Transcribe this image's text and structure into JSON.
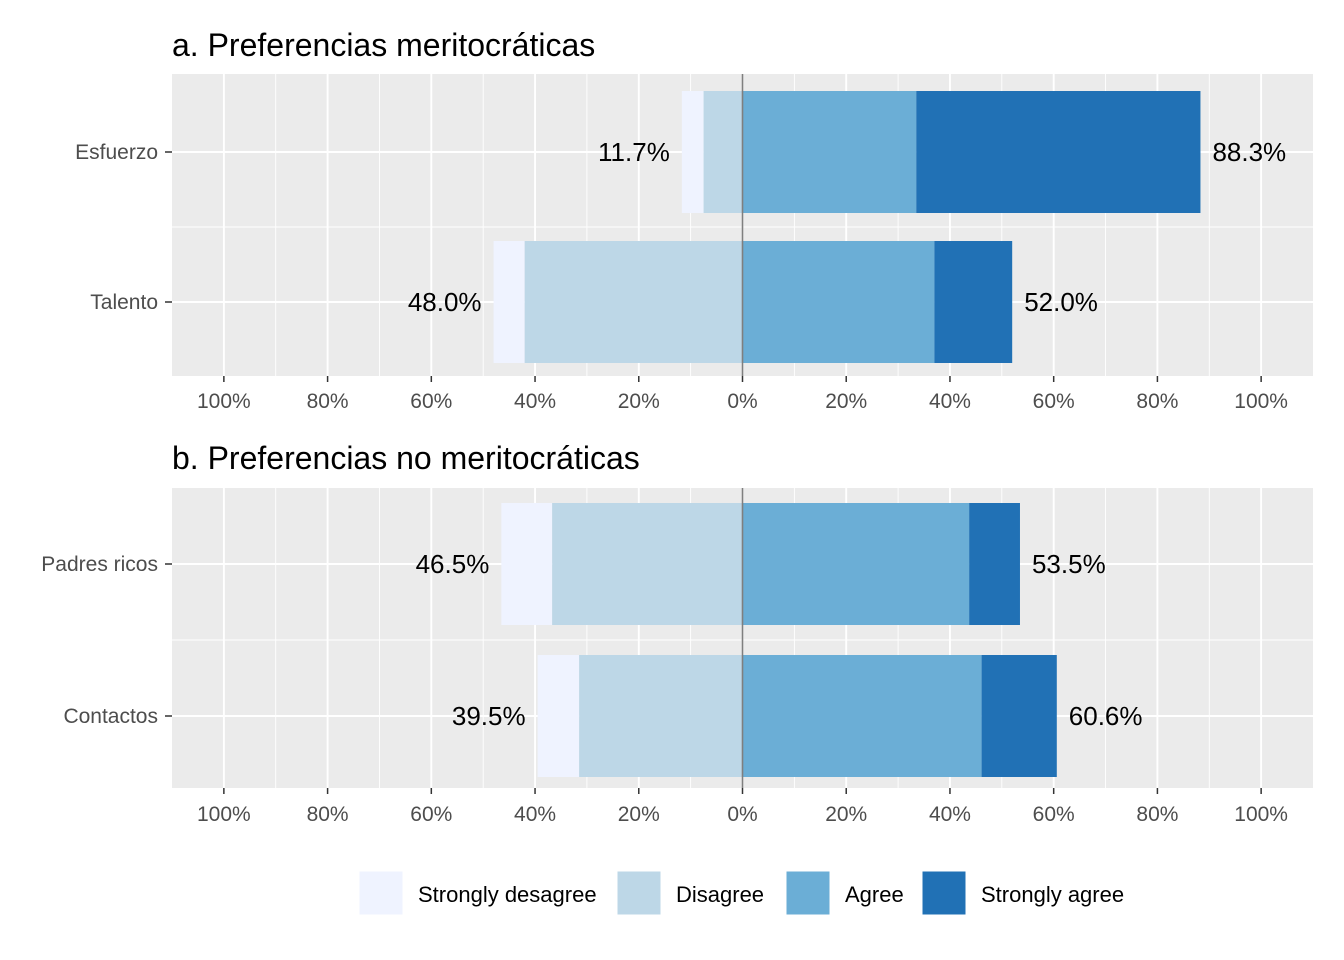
{
  "chart_data": {
    "type": "bar",
    "orientation": "horizontal-diverging",
    "x_tick_labels": [
      "100%",
      "80%",
      "60%",
      "40%",
      "20%",
      "0%",
      "20%",
      "40%",
      "60%",
      "80%",
      "100%"
    ],
    "xlim": [
      -110,
      110
    ],
    "legend": {
      "position": "bottom",
      "entries": [
        {
          "name": "Strongly desagree",
          "color": "#eff3ff"
        },
        {
          "name": "Disagree",
          "color": "#bdd7e7"
        },
        {
          "name": "Agree",
          "color": "#6baed6"
        },
        {
          "name": "Strongly agree",
          "color": "#2171b5"
        }
      ]
    },
    "panels": [
      {
        "title": "a. Preferencias meritocráticas",
        "categories": [
          "Esfuerzo",
          "Talento"
        ],
        "series": [
          {
            "name": "Strongly desagree",
            "values": [
              4.2,
              6.0
            ]
          },
          {
            "name": "Disagree",
            "values": [
              7.5,
              42.0
            ]
          },
          {
            "name": "Agree",
            "values": [
              33.5,
              37.0
            ]
          },
          {
            "name": "Strongly agree",
            "values": [
              54.8,
              15.0
            ]
          }
        ],
        "neg_labels": [
          "11.7%",
          "48.0%"
        ],
        "pos_labels": [
          "88.3%",
          "52.0%"
        ]
      },
      {
        "title": "b. Preferencias no meritocráticas",
        "categories": [
          "Padres ricos",
          "Contactos"
        ],
        "series": [
          {
            "name": "Strongly desagree",
            "values": [
              9.8,
              8.0
            ]
          },
          {
            "name": "Disagree",
            "values": [
              36.7,
              31.5
            ]
          },
          {
            "name": "Agree",
            "values": [
              43.7,
              46.1
            ]
          },
          {
            "name": "Strongly agree",
            "values": [
              9.8,
              14.5
            ]
          }
        ],
        "neg_labels": [
          "46.5%",
          "39.5%"
        ],
        "pos_labels": [
          "53.5%",
          "60.6%"
        ]
      }
    ]
  }
}
